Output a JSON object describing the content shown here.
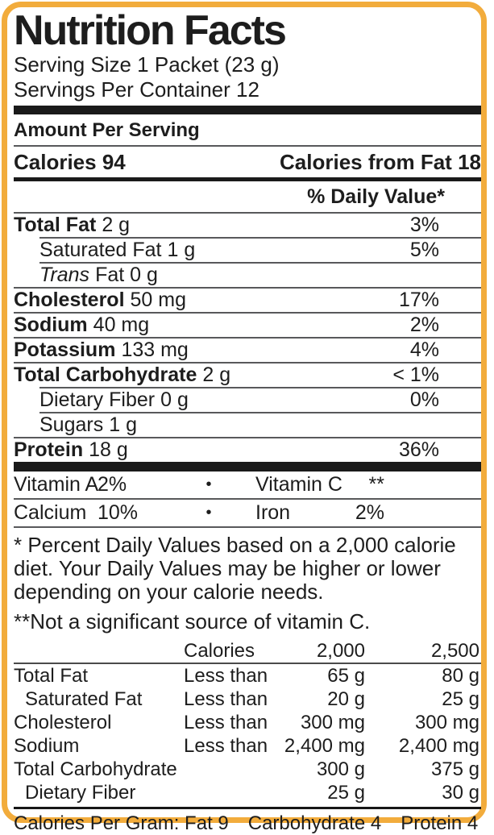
{
  "nutrition": {
    "title": "Nutrition Facts",
    "serving_size": "Serving Size 1 Packet (23 g)",
    "servings": "Servings Per Container 12",
    "amount_per_serving": "Amount Per Serving",
    "calories": "Calories 94",
    "calories_from_fat": "Calories from Fat 18",
    "daily_value_header": "% Daily Value*",
    "rows": [
      {
        "name": "Total Fat",
        "amount": "2 g",
        "dv": "3%",
        "style": "bold"
      },
      {
        "name": "Saturated Fat",
        "amount": "1 g",
        "dv": "5%",
        "style": "indent"
      },
      {
        "name": "Trans",
        "amount": "Fat 0 g",
        "dv": "",
        "style": "indent-italic"
      },
      {
        "name": "Cholesterol",
        "amount": "50 mg",
        "dv": "17%",
        "style": "bold"
      },
      {
        "name": "Sodium",
        "amount": "40 mg",
        "dv": "2%",
        "style": "bold"
      },
      {
        "name": "Potassium",
        "amount": "133 mg",
        "dv": "4%",
        "style": "bold"
      },
      {
        "name": "Total Carbohydrate",
        "amount": "2 g",
        "dv": "< 1%",
        "style": "bold"
      },
      {
        "name": "Dietary Fiber",
        "amount": "0 g",
        "dv": "0%",
        "style": "indent"
      },
      {
        "name": "Sugars",
        "amount": "1 g",
        "dv": "",
        "style": "indent"
      },
      {
        "name": "Protein",
        "amount": "18 g",
        "dv": "36%",
        "style": "bold"
      }
    ],
    "vitamins": [
      {
        "left_name": "Vitamin A",
        "left_value": "2%",
        "bullet": "•",
        "right_name": "Vitamin C",
        "right_value": "**"
      },
      {
        "left_name": "Calcium",
        "left_value": "10%",
        "bullet": "•",
        "right_name": "Iron",
        "right_value": "2%"
      }
    ],
    "footnote_dv": "* Percent Daily Values based on a 2,000 calorie diet. Your Daily Values may be higher or lower depending on your calorie needs.",
    "footnote_vitc": "**Not a significant source of vitamin C.",
    "reference_table": {
      "header": [
        "",
        "Calories",
        "2,000",
        "2,500"
      ],
      "rows": [
        {
          "cells": [
            "Total Fat",
            "Less than",
            "65 g",
            "80 g"
          ],
          "indent": false
        },
        {
          "cells": [
            "Saturated Fat",
            "Less than",
            "20 g",
            "25 g"
          ],
          "indent": true
        },
        {
          "cells": [
            "Cholesterol",
            "Less than",
            "300 mg",
            "300 mg"
          ],
          "indent": false
        },
        {
          "cells": [
            "Sodium",
            "Less than",
            "2,400 mg",
            "2,400 mg"
          ],
          "indent": false
        },
        {
          "cells": [
            "Total Carbohydrate",
            "",
            "300 g",
            "375 g"
          ],
          "indent": false
        },
        {
          "cells": [
            "Dietary Fiber",
            "",
            "25 g",
            "30 g"
          ],
          "indent": true
        }
      ]
    },
    "calories_per_gram": {
      "prefix": "Calories Per Gram:",
      "items": [
        "Fat 9",
        "Carbohydrate 4",
        "Protein 4"
      ]
    },
    "colors": {
      "border": "#F2AC3C",
      "bar": "#1a1a1a",
      "text": "#1d1d1d"
    }
  }
}
